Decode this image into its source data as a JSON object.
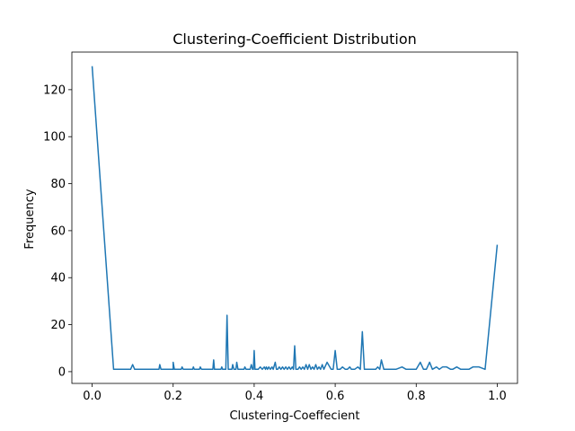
{
  "chart_data": {
    "type": "line",
    "title": "Clustering-Coefficient Distribution",
    "xlabel": "Clustering-Coeffecient",
    "ylabel": "Frequency",
    "xlim": [
      -0.05,
      1.05
    ],
    "ylim": [
      -5,
      136
    ],
    "xticks": [
      0.0,
      0.2,
      0.4,
      0.6,
      0.8,
      1.0
    ],
    "xtick_labels": [
      "0.0",
      "0.2",
      "0.4",
      "0.6",
      "0.8",
      "1.0"
    ],
    "yticks": [
      0,
      20,
      40,
      60,
      80,
      100,
      120
    ],
    "ytick_labels": [
      "0",
      "20",
      "40",
      "60",
      "80",
      "100",
      "120"
    ],
    "grid": false,
    "series": [
      {
        "color": "#1f77b4",
        "x": [
          0.0,
          0.053,
          0.095,
          0.1,
          0.105,
          0.165,
          0.167,
          0.17,
          0.2,
          0.2,
          0.203,
          0.22,
          0.222,
          0.225,
          0.248,
          0.25,
          0.252,
          0.265,
          0.267,
          0.27,
          0.298,
          0.3,
          0.302,
          0.318,
          0.32,
          0.322,
          0.33,
          0.333,
          0.336,
          0.345,
          0.347,
          0.35,
          0.355,
          0.357,
          0.36,
          0.375,
          0.377,
          0.38,
          0.39,
          0.393,
          0.396,
          0.398,
          0.4,
          0.402,
          0.41,
          0.415,
          0.42,
          0.425,
          0.428,
          0.43,
          0.433,
          0.436,
          0.44,
          0.444,
          0.447,
          0.452,
          0.455,
          0.458,
          0.462,
          0.466,
          0.47,
          0.474,
          0.478,
          0.482,
          0.486,
          0.49,
          0.494,
          0.497,
          0.5,
          0.503,
          0.508,
          0.512,
          0.516,
          0.52,
          0.524,
          0.528,
          0.532,
          0.536,
          0.54,
          0.544,
          0.548,
          0.552,
          0.556,
          0.56,
          0.564,
          0.568,
          0.572,
          0.58,
          0.59,
          0.595,
          0.6,
          0.605,
          0.612,
          0.618,
          0.625,
          0.63,
          0.636,
          0.64,
          0.648,
          0.656,
          0.662,
          0.667,
          0.672,
          0.68,
          0.7,
          0.705,
          0.71,
          0.714,
          0.72,
          0.73,
          0.75,
          0.765,
          0.775,
          0.8,
          0.81,
          0.818,
          0.825,
          0.833,
          0.84,
          0.85,
          0.857,
          0.865,
          0.875,
          0.885,
          0.89,
          0.9,
          0.91,
          0.92,
          0.93,
          0.94,
          0.955,
          0.97,
          1.0
        ],
        "y": [
          130,
          1,
          1,
          3,
          1,
          1,
          3,
          1,
          1,
          4,
          1,
          1,
          2,
          1,
          1,
          2,
          1,
          1,
          2,
          1,
          1,
          5,
          1,
          1,
          2,
          1,
          1,
          24,
          1,
          1,
          3,
          1,
          1,
          4,
          1,
          1,
          2,
          1,
          1,
          3,
          1,
          1,
          9,
          1,
          1,
          2,
          1,
          2,
          1,
          2,
          1,
          2,
          1,
          2,
          1,
          4,
          1,
          1,
          2,
          1,
          2,
          1,
          2,
          1,
          2,
          1,
          2,
          1,
          11,
          1,
          1,
          2,
          1,
          2,
          1,
          3,
          1,
          3,
          1,
          2,
          1,
          3,
          1,
          2,
          1,
          3,
          1,
          4,
          1,
          1,
          9,
          1,
          1,
          2,
          1,
          1,
          2,
          1,
          1,
          2,
          1,
          17,
          1,
          1,
          1,
          2,
          1,
          5,
          1,
          1,
          1,
          2,
          1,
          1,
          4,
          1,
          1,
          4,
          1,
          2,
          1,
          2,
          2,
          1,
          1,
          2,
          1,
          1,
          1,
          2,
          2,
          1,
          54
        ]
      }
    ]
  }
}
